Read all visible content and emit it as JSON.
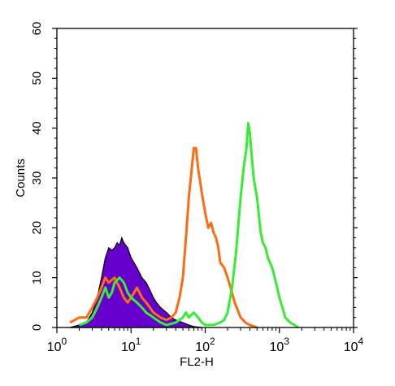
{
  "chart_data": {
    "type": "area",
    "xlabel": "FL2-H",
    "ylabel": "Counts",
    "x_scale": "log",
    "xlim": [
      1,
      10000
    ],
    "ylim": [
      0,
      60
    ],
    "x_ticks": [
      {
        "value": 1,
        "base": "10",
        "exp": "0"
      },
      {
        "value": 10,
        "base": "10",
        "exp": "1"
      },
      {
        "value": 100,
        "base": "10",
        "exp": "2"
      },
      {
        "value": 1000,
        "base": "10",
        "exp": "3"
      },
      {
        "value": 10000,
        "base": "10",
        "exp": "4"
      }
    ],
    "y_ticks": [
      "0",
      "10",
      "20",
      "30",
      "40",
      "50",
      "60"
    ],
    "grid": false,
    "series": [
      {
        "color": "#6600cc",
        "style": "filled",
        "points": [
          [
            1.5,
            0
          ],
          [
            2.0,
            0.5
          ],
          [
            2.5,
            1
          ],
          [
            3.0,
            3
          ],
          [
            3.5,
            6
          ],
          [
            4.0,
            10
          ],
          [
            4.5,
            14
          ],
          [
            5.0,
            16
          ],
          [
            5.5,
            15.5
          ],
          [
            6.0,
            16
          ],
          [
            6.5,
            17
          ],
          [
            7.0,
            16.5
          ],
          [
            7.5,
            18
          ],
          [
            8.0,
            17
          ],
          [
            9.0,
            16
          ],
          [
            10,
            14
          ],
          [
            12,
            12
          ],
          [
            14,
            10
          ],
          [
            16,
            9
          ],
          [
            18,
            7.5
          ],
          [
            20,
            6
          ],
          [
            22,
            5
          ],
          [
            25,
            4
          ],
          [
            30,
            3
          ],
          [
            35,
            2
          ],
          [
            40,
            1.5
          ],
          [
            50,
            1
          ],
          [
            60,
            0.5
          ],
          [
            70,
            0.2
          ],
          [
            90,
            0
          ]
        ]
      },
      {
        "color": "#ff6a13",
        "style": "line",
        "points": [
          [
            1.5,
            1
          ],
          [
            2.0,
            2
          ],
          [
            2.5,
            2
          ],
          [
            3.0,
            4
          ],
          [
            3.5,
            6
          ],
          [
            4.0,
            8
          ],
          [
            4.5,
            10
          ],
          [
            5.0,
            9
          ],
          [
            6.0,
            10
          ],
          [
            7.0,
            8
          ],
          [
            8.0,
            6
          ],
          [
            9.0,
            5
          ],
          [
            10,
            6
          ],
          [
            11,
            7
          ],
          [
            12,
            8
          ],
          [
            13,
            7
          ],
          [
            14,
            6
          ],
          [
            16,
            5
          ],
          [
            18,
            4
          ],
          [
            20,
            3
          ],
          [
            25,
            2
          ],
          [
            30,
            1.5
          ],
          [
            35,
            2
          ],
          [
            40,
            3
          ],
          [
            45,
            6
          ],
          [
            50,
            10
          ],
          [
            55,
            18
          ],
          [
            60,
            26
          ],
          [
            65,
            31
          ],
          [
            70,
            36
          ],
          [
            75,
            36
          ],
          [
            80,
            32
          ],
          [
            90,
            27
          ],
          [
            100,
            23
          ],
          [
            110,
            20
          ],
          [
            120,
            21
          ],
          [
            130,
            19
          ],
          [
            140,
            18
          ],
          [
            150,
            16
          ],
          [
            160,
            13
          ],
          [
            180,
            12
          ],
          [
            200,
            10
          ],
          [
            220,
            8
          ],
          [
            250,
            5
          ],
          [
            300,
            2
          ],
          [
            350,
            1
          ],
          [
            400,
            0.5
          ],
          [
            500,
            0
          ]
        ]
      },
      {
        "color": "#33ee33",
        "style": "line",
        "points": [
          [
            2.0,
            0.5
          ],
          [
            2.5,
            1
          ],
          [
            3.0,
            2
          ],
          [
            3.5,
            4
          ],
          [
            4.0,
            6
          ],
          [
            4.5,
            8
          ],
          [
            5.0,
            6
          ],
          [
            5.5,
            7
          ],
          [
            6.0,
            9
          ],
          [
            7.0,
            10
          ],
          [
            8.0,
            9
          ],
          [
            9.0,
            7
          ],
          [
            10,
            6
          ],
          [
            12,
            5
          ],
          [
            14,
            4
          ],
          [
            16,
            3
          ],
          [
            18,
            2.5
          ],
          [
            20,
            2
          ],
          [
            25,
            1
          ],
          [
            30,
            0.5
          ],
          [
            40,
            1
          ],
          [
            50,
            2
          ],
          [
            55,
            3
          ],
          [
            60,
            2
          ],
          [
            70,
            3
          ],
          [
            80,
            2
          ],
          [
            90,
            1
          ],
          [
            100,
            0.5
          ],
          [
            130,
            0.5
          ],
          [
            160,
            1
          ],
          [
            180,
            1.5
          ],
          [
            200,
            3
          ],
          [
            230,
            8
          ],
          [
            260,
            15
          ],
          [
            300,
            26
          ],
          [
            330,
            32
          ],
          [
            360,
            36
          ],
          [
            380,
            41
          ],
          [
            400,
            39
          ],
          [
            420,
            35
          ],
          [
            450,
            30
          ],
          [
            500,
            26
          ],
          [
            560,
            19
          ],
          [
            600,
            17
          ],
          [
            650,
            16
          ],
          [
            700,
            14
          ],
          [
            800,
            12
          ],
          [
            900,
            9
          ],
          [
            1000,
            6
          ],
          [
            1100,
            4
          ],
          [
            1200,
            2
          ],
          [
            1400,
            1
          ],
          [
            1600,
            0.5
          ],
          [
            1800,
            0
          ]
        ]
      }
    ]
  }
}
